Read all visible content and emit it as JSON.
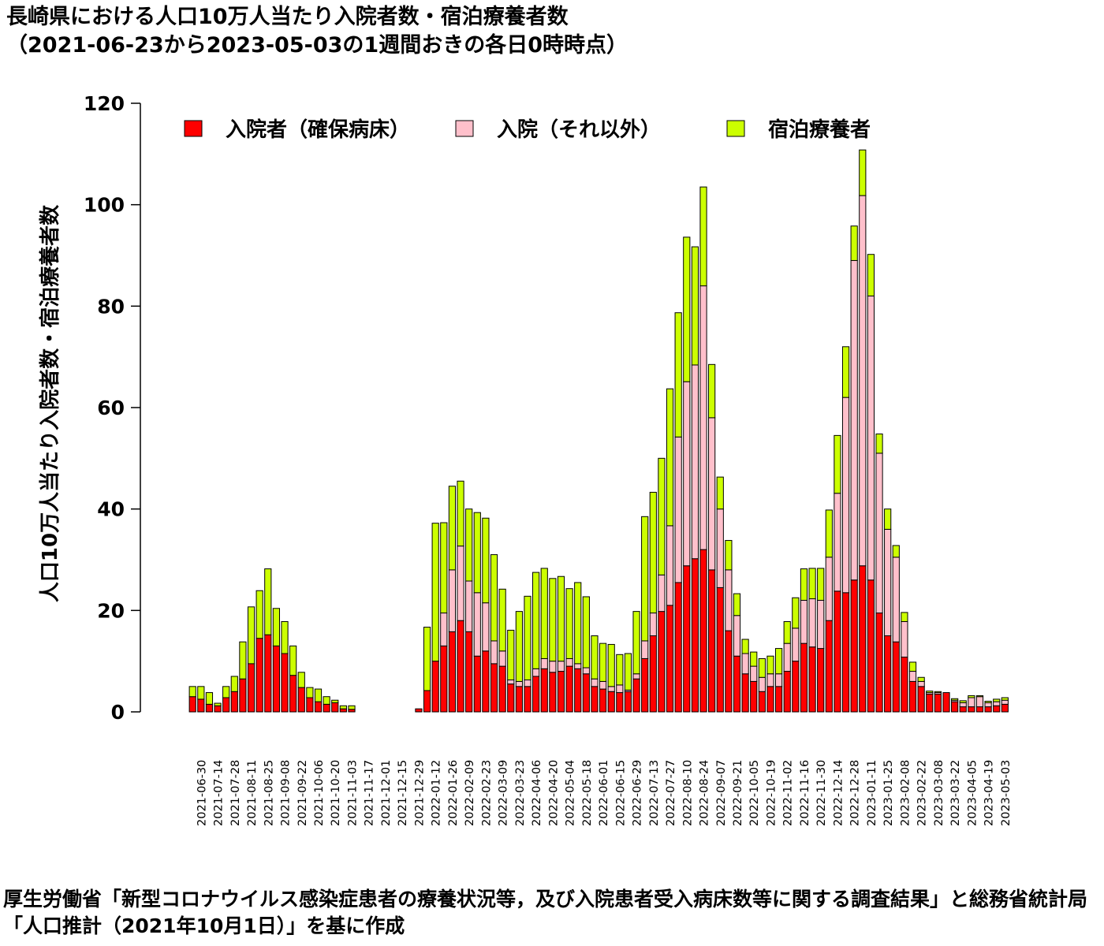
{
  "title": {
    "line1": "長崎県における人口10万人当たり入院者数・宿泊療養者数",
    "line2": "（2021-06-23から2023-05-03の1週間おきの各日0時時点）"
  },
  "source_note": "厚生労働省「新型コロナウイルス感染症患者の療養状況等，及び入院患者受入病床数等に関する調査結果」と総務省統計局「人口推計（2021年10月1日）」を基に作成",
  "chart_data": {
    "type": "bar",
    "stacked": true,
    "ylabel": "人口10万人当たり入院者数・宿泊療養者数",
    "ylim": [
      0,
      120
    ],
    "yticks": [
      0,
      20,
      40,
      60,
      80,
      100,
      120
    ],
    "legend_position": "top",
    "dates": [
      "2021-06-23",
      "2021-06-30",
      "2021-07-07",
      "2021-07-14",
      "2021-07-21",
      "2021-07-28",
      "2021-08-04",
      "2021-08-11",
      "2021-08-18",
      "2021-08-25",
      "2021-09-01",
      "2021-09-08",
      "2021-09-15",
      "2021-09-22",
      "2021-09-29",
      "2021-10-06",
      "2021-10-13",
      "2021-10-20",
      "2021-10-27",
      "2021-11-03",
      "2021-11-10",
      "2021-11-17",
      "2021-11-24",
      "2021-12-01",
      "2021-12-08",
      "2021-12-15",
      "2021-12-22",
      "2021-12-29",
      "2022-01-05",
      "2022-01-12",
      "2022-01-19",
      "2022-01-26",
      "2022-02-02",
      "2022-02-09",
      "2022-02-16",
      "2022-02-23",
      "2022-03-02",
      "2022-03-09",
      "2022-03-16",
      "2022-03-23",
      "2022-03-30",
      "2022-04-06",
      "2022-04-13",
      "2022-04-20",
      "2022-04-27",
      "2022-05-04",
      "2022-05-11",
      "2022-05-18",
      "2022-05-25",
      "2022-06-01",
      "2022-06-08",
      "2022-06-15",
      "2022-06-22",
      "2022-06-29",
      "2022-07-06",
      "2022-07-13",
      "2022-07-20",
      "2022-07-27",
      "2022-08-03",
      "2022-08-10",
      "2022-08-17",
      "2022-08-24",
      "2022-08-31",
      "2022-09-07",
      "2022-09-14",
      "2022-09-21",
      "2022-09-28",
      "2022-10-05",
      "2022-10-12",
      "2022-10-19",
      "2022-10-26",
      "2022-11-02",
      "2022-11-09",
      "2022-11-16",
      "2022-11-23",
      "2022-11-30",
      "2022-12-07",
      "2022-12-14",
      "2022-12-21",
      "2022-12-28",
      "2023-01-04",
      "2023-01-11",
      "2023-01-18",
      "2023-01-25",
      "2023-02-01",
      "2023-02-08",
      "2023-02-15",
      "2023-02-22",
      "2023-03-01",
      "2023-03-08",
      "2023-03-15",
      "2023-03-22",
      "2023-03-29",
      "2023-04-05",
      "2023-04-12",
      "2023-04-19",
      "2023-04-26",
      "2023-05-03"
    ],
    "tick_labels": [
      "2021-06-30",
      "2021-07-14",
      "2021-07-28",
      "2021-08-11",
      "2021-08-25",
      "2021-09-08",
      "2021-09-22",
      "2021-10-06",
      "2021-10-20",
      "2021-11-03",
      "2021-11-17",
      "2021-12-01",
      "2021-12-15",
      "2021-12-29",
      "2022-01-12",
      "2022-01-26",
      "2022-02-09",
      "2022-02-23",
      "2022-03-09",
      "2022-03-23",
      "2022-04-06",
      "2022-04-20",
      "2022-05-04",
      "2022-05-18",
      "2022-06-01",
      "2022-06-15",
      "2022-06-29",
      "2022-07-13",
      "2022-07-27",
      "2022-08-10",
      "2022-08-24",
      "2022-09-07",
      "2022-09-21",
      "2022-10-05",
      "2022-10-19",
      "2022-11-02",
      "2022-11-16",
      "2022-11-30",
      "2022-12-14",
      "2022-12-28",
      "2023-01-11",
      "2023-01-25",
      "2023-02-08",
      "2023-02-22",
      "2023-03-08",
      "2023-03-22",
      "2023-04-05",
      "2023-04-19",
      "2023-05-03"
    ],
    "series": [
      {
        "name": "入院者（確保病床）",
        "color": "#ff0000",
        "values": [
          3.0,
          2.5,
          1.5,
          1.2,
          2.8,
          4.0,
          6.5,
          9.5,
          14.5,
          15.2,
          13.0,
          11.5,
          7.2,
          4.8,
          2.8,
          2.0,
          1.5,
          1.8,
          0.6,
          0.5,
          0,
          0,
          0,
          0,
          0,
          0,
          0,
          0.6,
          4.2,
          10.0,
          13.0,
          15.8,
          18.0,
          15.8,
          11.0,
          12.0,
          9.5,
          9.0,
          5.5,
          5.0,
          5.0,
          7.0,
          8.5,
          7.8,
          8.0,
          9.0,
          8.5,
          7.5,
          5.0,
          4.5,
          4.0,
          3.8,
          4.0,
          6.5,
          10.5,
          15.0,
          19.8,
          21.0,
          25.5,
          28.8,
          30.2,
          32.0,
          28.0,
          24.5,
          16.0,
          11.0,
          7.5,
          6.0,
          4.0,
          5.0,
          5.0,
          8.0,
          10.0,
          13.5,
          12.8,
          12.5,
          18.0,
          23.8,
          23.5,
          26.0,
          28.8,
          26.0,
          19.5,
          15.0,
          13.8,
          10.8,
          6.0,
          5.0,
          3.5,
          3.5,
          3.8,
          2.0,
          1.0,
          1.0,
          1.0,
          1.0,
          1.2,
          1.5
        ]
      },
      {
        "name": "入院（それ以外）",
        "color": "#ffc0cb",
        "values": [
          0,
          0,
          0,
          0,
          0,
          0,
          0,
          0,
          0,
          0,
          0,
          0,
          0,
          0,
          0,
          0,
          0,
          0,
          0,
          0,
          0,
          0,
          0,
          0,
          0,
          0,
          0,
          0,
          0,
          0,
          6.5,
          12.2,
          14.7,
          10.0,
          12.5,
          9.5,
          4.5,
          3.0,
          0.8,
          1.0,
          1.3,
          1.5,
          2.0,
          2.2,
          2.0,
          1.5,
          1.0,
          1.2,
          1.5,
          1.5,
          1.0,
          1.5,
          0.3,
          1.0,
          3.5,
          4.5,
          7.2,
          15.7,
          28.7,
          36.3,
          38.2,
          52.0,
          30.0,
          15.5,
          12.0,
          8.0,
          4.0,
          3.0,
          2.8,
          2.5,
          2.5,
          5.5,
          6.5,
          8.5,
          9.5,
          9.5,
          12.5,
          19.3,
          38.5,
          63.0,
          73.0,
          56.0,
          31.5,
          21.0,
          16.7,
          7.0,
          2.0,
          1.0,
          0.3,
          0.3,
          0,
          0.3,
          0.8,
          1.8,
          2.0,
          0.8,
          0.8,
          0.8
        ]
      },
      {
        "name": "宿泊療養者",
        "color": "#ccff00",
        "values": [
          2.0,
          2.5,
          2.3,
          0.5,
          2.2,
          3.0,
          7.3,
          11.2,
          9.4,
          13.0,
          7.4,
          6.3,
          5.8,
          3.0,
          2.0,
          2.5,
          1.5,
          0.5,
          0.6,
          0.7,
          0,
          0,
          0,
          0,
          0,
          0,
          0,
          0,
          12.5,
          27.2,
          17.8,
          16.5,
          12.8,
          14.2,
          15.8,
          16.7,
          17.0,
          12.2,
          9.8,
          13.8,
          16.5,
          19.0,
          17.8,
          16.3,
          16.7,
          13.8,
          16.0,
          14.0,
          8.5,
          7.5,
          8.3,
          6.0,
          7.2,
          12.3,
          24.5,
          23.8,
          23.0,
          27.0,
          24.5,
          28.5,
          23.3,
          19.5,
          10.5,
          6.3,
          5.8,
          4.3,
          2.8,
          2.8,
          3.7,
          3.5,
          5.0,
          4.3,
          6.0,
          6.2,
          6.0,
          6.3,
          9.3,
          11.4,
          10.0,
          6.8,
          9.0,
          8.2,
          3.8,
          4.0,
          2.3,
          1.8,
          1.8,
          0.8,
          0.3,
          0.2,
          0,
          0.3,
          0.4,
          0.4,
          0.2,
          0.3,
          0.5,
          0.5
        ]
      }
    ]
  }
}
